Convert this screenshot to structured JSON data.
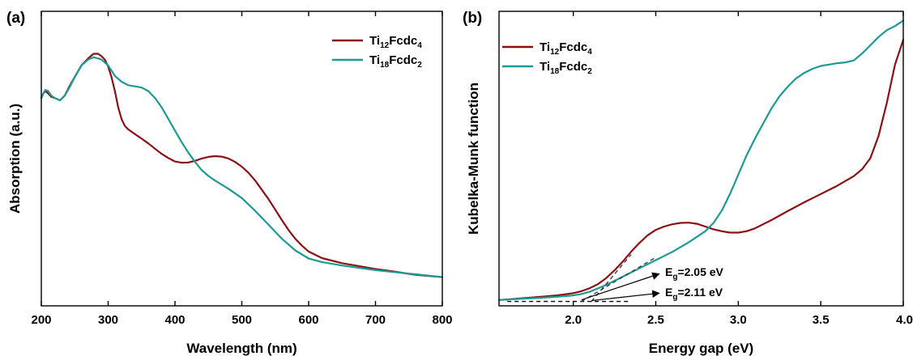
{
  "colors": {
    "ti12": "#8b1214",
    "ti18": "#1b9a96",
    "axis": "#000000"
  },
  "chart_data": [
    {
      "panel_label": "(a)",
      "type": "line",
      "xlabel": "Wavelength (nm)",
      "ylabel": "Absorption (a.u.)",
      "xlim": [
        200,
        800
      ],
      "ylim": [
        0,
        1
      ],
      "x_ticks": [
        "200",
        "300",
        "400",
        "500",
        "600",
        "700",
        "800"
      ],
      "y_ticks_visible": false,
      "grid": false,
      "legend_position": "top-right",
      "series": [
        {
          "name_base": "Ti",
          "name_sub1": "12",
          "name_mid": "Fcdc",
          "name_sub2": "4",
          "color": "#8b1214",
          "x": [
            200,
            203,
            206,
            210,
            215,
            220,
            228,
            235,
            242,
            250,
            260,
            270,
            278,
            285,
            290,
            295,
            300,
            305,
            310,
            315,
            320,
            325,
            330,
            340,
            350,
            360,
            370,
            380,
            390,
            400,
            410,
            420,
            430,
            440,
            450,
            460,
            470,
            480,
            490,
            500,
            510,
            520,
            530,
            540,
            550,
            560,
            570,
            580,
            590,
            600,
            620,
            650,
            680,
            700,
            730,
            760,
            800
          ],
          "y": [
            0.83,
            0.85,
            0.86,
            0.85,
            0.835,
            0.83,
            0.82,
            0.84,
            0.88,
            0.92,
            0.97,
            1.0,
            1.02,
            1.02,
            1.01,
            0.995,
            0.965,
            0.92,
            0.86,
            0.79,
            0.74,
            0.71,
            0.695,
            0.675,
            0.655,
            0.635,
            0.612,
            0.59,
            0.572,
            0.557,
            0.552,
            0.553,
            0.56,
            0.57,
            0.577,
            0.58,
            0.578,
            0.57,
            0.555,
            0.535,
            0.508,
            0.475,
            0.435,
            0.395,
            0.35,
            0.305,
            0.262,
            0.225,
            0.195,
            0.17,
            0.142,
            0.12,
            0.105,
            0.095,
            0.083,
            0.07,
            0.06
          ]
        },
        {
          "name_base": "Ti",
          "name_sub1": "18",
          "name_mid": "Fcdc",
          "name_sub2": "2",
          "color": "#1b9a96",
          "x": [
            200,
            203,
            206,
            210,
            215,
            220,
            228,
            235,
            242,
            250,
            260,
            270,
            278,
            285,
            290,
            300,
            310,
            320,
            330,
            340,
            350,
            360,
            370,
            380,
            390,
            400,
            410,
            420,
            430,
            440,
            450,
            460,
            480,
            500,
            520,
            540,
            560,
            580,
            600,
            620,
            650,
            700,
            750,
            800
          ],
          "y": [
            0.83,
            0.85,
            0.865,
            0.86,
            0.84,
            0.83,
            0.82,
            0.84,
            0.875,
            0.92,
            0.97,
            0.995,
            1.005,
            1.0,
            0.995,
            0.97,
            0.925,
            0.9,
            0.885,
            0.88,
            0.875,
            0.86,
            0.83,
            0.79,
            0.74,
            0.69,
            0.64,
            0.595,
            0.555,
            0.52,
            0.495,
            0.475,
            0.44,
            0.4,
            0.345,
            0.285,
            0.225,
            0.175,
            0.14,
            0.125,
            0.11,
            0.09,
            0.075,
            0.06
          ]
        }
      ]
    },
    {
      "panel_label": "(b)",
      "type": "line",
      "xlabel": "Energy gap (eV)",
      "ylabel": "Kubelka-Munk function",
      "xlim": [
        1.55,
        4.0
      ],
      "ylim": [
        0,
        1
      ],
      "x_ticks": [
        "2.0",
        "2.5",
        "3.0",
        "3.5",
        "4.0"
      ],
      "x_tick_values": [
        2.0,
        2.5,
        3.0,
        3.5,
        4.0
      ],
      "y_ticks_visible": false,
      "grid": false,
      "legend_position": "top-left",
      "annotations": [
        {
          "base": "E",
          "sub": "g",
          "rest": "=2.05 eV"
        },
        {
          "base": "E",
          "sub": "g",
          "rest": "=2.11 eV"
        }
      ],
      "series": [
        {
          "name_base": "Ti",
          "name_sub1": "12",
          "name_mid": "Fcdc",
          "name_sub2": "4",
          "color": "#8b1214",
          "x": [
            1.55,
            1.7,
            1.8,
            1.9,
            2.0,
            2.05,
            2.1,
            2.15,
            2.2,
            2.25,
            2.3,
            2.35,
            2.4,
            2.45,
            2.5,
            2.55,
            2.6,
            2.65,
            2.7,
            2.75,
            2.8,
            2.85,
            2.9,
            2.95,
            3.0,
            3.05,
            3.1,
            3.2,
            3.3,
            3.4,
            3.5,
            3.6,
            3.7,
            3.75,
            3.8,
            3.85,
            3.9,
            3.95,
            4.0
          ],
          "y": [
            0.005,
            0.012,
            0.017,
            0.022,
            0.03,
            0.037,
            0.048,
            0.063,
            0.085,
            0.113,
            0.145,
            0.18,
            0.212,
            0.24,
            0.26,
            0.272,
            0.28,
            0.285,
            0.286,
            0.282,
            0.272,
            0.262,
            0.255,
            0.25,
            0.25,
            0.255,
            0.265,
            0.295,
            0.328,
            0.36,
            0.39,
            0.42,
            0.455,
            0.48,
            0.52,
            0.6,
            0.72,
            0.86,
            0.95
          ]
        },
        {
          "name_base": "Ti",
          "name_sub1": "18",
          "name_mid": "Fcdc",
          "name_sub2": "2",
          "color": "#1b9a96",
          "x": [
            1.55,
            1.7,
            1.8,
            1.9,
            2.0,
            2.05,
            2.1,
            2.2,
            2.3,
            2.4,
            2.5,
            2.6,
            2.7,
            2.8,
            2.85,
            2.9,
            2.95,
            3.0,
            3.05,
            3.1,
            3.15,
            3.2,
            3.25,
            3.3,
            3.35,
            3.4,
            3.45,
            3.5,
            3.55,
            3.6,
            3.65,
            3.7,
            3.75,
            3.8,
            3.85,
            3.9,
            3.95,
            4.0
          ],
          "y": [
            0.005,
            0.01,
            0.013,
            0.017,
            0.022,
            0.027,
            0.035,
            0.06,
            0.09,
            0.12,
            0.15,
            0.18,
            0.215,
            0.255,
            0.285,
            0.33,
            0.39,
            0.46,
            0.53,
            0.59,
            0.645,
            0.7,
            0.745,
            0.78,
            0.81,
            0.83,
            0.845,
            0.855,
            0.86,
            0.865,
            0.868,
            0.875,
            0.9,
            0.93,
            0.96,
            0.985,
            1.0,
            1.02
          ]
        }
      ]
    }
  ]
}
